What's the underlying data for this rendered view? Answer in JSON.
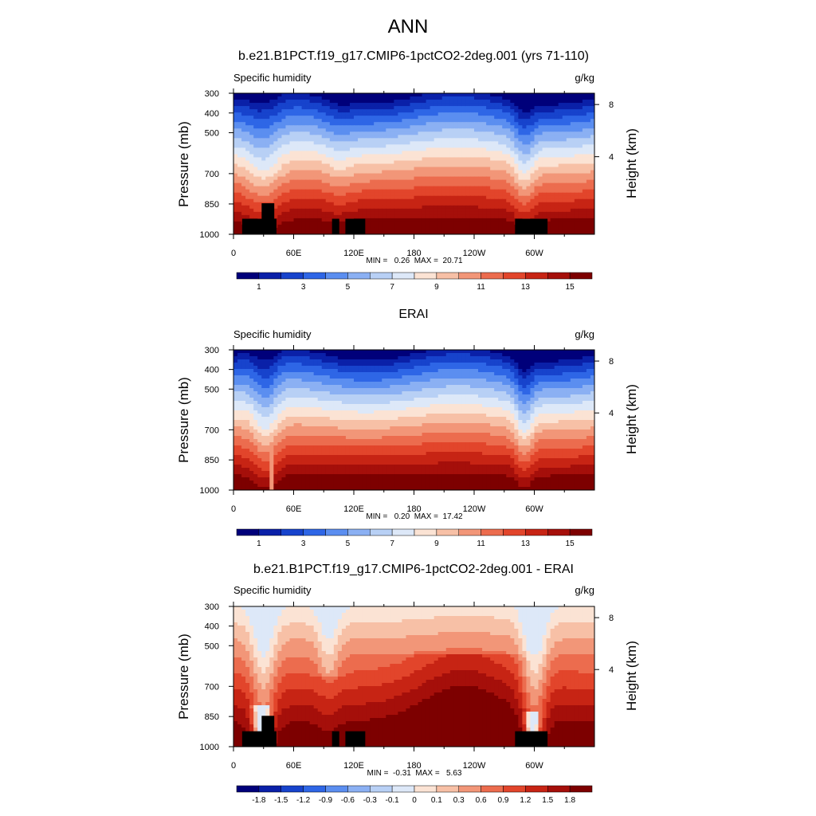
{
  "figure": {
    "title": "ANN"
  },
  "chart_data": [
    {
      "type": "heatmap",
      "title": "b.e21.B1PCT.f19_g17.CMIP6-1pctCO2-2deg.001 (yrs 71-110)",
      "variable": "Specific humidity",
      "units": "g/kg",
      "ylabel": "Pressure (mb)",
      "ylabel_right": "Height (km)",
      "x_ticks": [
        "0",
        "60E",
        "120E",
        "180",
        "120W",
        "60W"
      ],
      "y_ticks": [
        "300",
        "400",
        "500",
        "700",
        "850",
        "1000"
      ],
      "y2_ticks": [
        "8",
        "4"
      ],
      "min_text": "MIN =   0.26  MAX =  20.71",
      "colorbar_labels": [
        "1",
        "3",
        "5",
        "7",
        "9",
        "11",
        "13",
        "15"
      ],
      "terrain": true
    },
    {
      "type": "heatmap",
      "title": "ERAI",
      "variable": "Specific humidity",
      "units": "g/kg",
      "ylabel": "Pressure (mb)",
      "ylabel_right": "Height (km)",
      "x_ticks": [
        "0",
        "60E",
        "120E",
        "180",
        "120W",
        "60W"
      ],
      "y_ticks": [
        "300",
        "400",
        "500",
        "700",
        "850",
        "1000"
      ],
      "y2_ticks": [
        "8",
        "4"
      ],
      "min_text": "MIN =   0.20  MAX =  17.42",
      "colorbar_labels": [
        "1",
        "3",
        "5",
        "7",
        "9",
        "11",
        "13",
        "15"
      ],
      "terrain": false
    },
    {
      "type": "heatmap",
      "title": "b.e21.B1PCT.f19_g17.CMIP6-1pctCO2-2deg.001 - ERAI",
      "variable": "Specific humidity",
      "units": "g/kg",
      "ylabel": "Pressure (mb)",
      "ylabel_right": "Height (km)",
      "x_ticks": [
        "0",
        "60E",
        "120E",
        "180",
        "120W",
        "60W"
      ],
      "y_ticks": [
        "300",
        "400",
        "500",
        "700",
        "850",
        "1000"
      ],
      "y2_ticks": [
        "8",
        "4"
      ],
      "min_text": "MIN =  -0.31  MAX =   5.63",
      "colorbar_labels": [
        "-1.8",
        "-1.5",
        "-1.2",
        "-0.9",
        "-0.6",
        "-0.3",
        "-0.1",
        "0",
        "0.1",
        "0.3",
        "0.6",
        "0.9",
        "1.2",
        "1.5",
        "1.8"
      ],
      "terrain": true
    }
  ],
  "colors": {
    "palette": [
      "#00007a",
      "#0a20a8",
      "#1743cc",
      "#2e66e6",
      "#5b8ef0",
      "#8bb0f3",
      "#b8d0f5",
      "#dde8f8",
      "#fbe3d4",
      "#f7c0a6",
      "#f29678",
      "#ec6c4e",
      "#e2452b",
      "#c72414",
      "#a50f0a",
      "#7d0000"
    ]
  }
}
